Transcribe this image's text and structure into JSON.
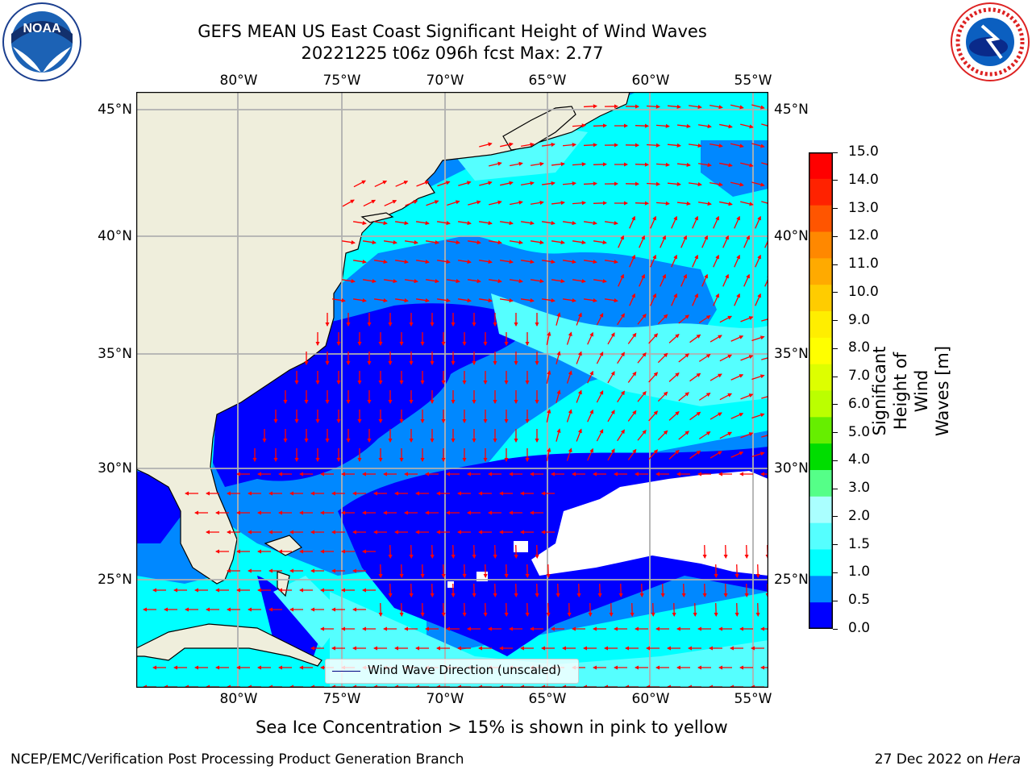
{
  "title": {
    "line1": "GEFS MEAN US East Coast Significant Height of Wind Waves",
    "line2": "20221225 t06z 096h fcst   Max: 2.77"
  },
  "map": {
    "lon_labels": [
      "80°W",
      "75°W",
      "70°W",
      "65°W",
      "60°W",
      "55°W"
    ],
    "lat_labels": [
      "45°N",
      "40°N",
      "35°N",
      "30°N",
      "25°N"
    ],
    "extent": {
      "lon": [
        -85,
        -54.5
      ],
      "lat": [
        20.5,
        45.8
      ]
    },
    "gridlines": true,
    "land_color": "#efeedc"
  },
  "colorbar": {
    "label_line1": "Significant Height of Wind",
    "label_line2": "Waves [m]",
    "ticks": [
      "15.0",
      "14.0",
      "13.0",
      "12.0",
      "11.0",
      "10.0",
      "9.0",
      "8.0",
      "7.0",
      "6.0",
      "5.0",
      "4.0",
      "3.0",
      "2.0",
      "1.5",
      "1.0",
      "0.5",
      "0.0"
    ],
    "colors": [
      "#ff0000",
      "#ff2200",
      "#ff5500",
      "#ff8800",
      "#ffaa00",
      "#ffcc00",
      "#ffee00",
      "#ffff00",
      "#ddff00",
      "#bbff00",
      "#66ee00",
      "#00dd00",
      "#55ff88",
      "#aaffff",
      "#55ffff",
      "#00ffff",
      "#0088ff",
      "#0000ff"
    ]
  },
  "legend": {
    "label": "Wind Wave Direction (unscaled)"
  },
  "sea_ice_note": "Sea Ice Concentration > 15% is shown in pink to yellow",
  "footer": {
    "left": "NCEP/EMC/Verification Post Processing Product Generation Branch",
    "date": "27 Dec 2022 on",
    "machine": "Hera"
  },
  "logos": {
    "noaa": {
      "text": "NOAA",
      "ring": "NATIONAL OCEANIC AND ATMOSPHERIC ADMINISTRATION"
    },
    "nws": {
      "ring": "NATIONAL WEATHER SERVICE"
    }
  }
}
